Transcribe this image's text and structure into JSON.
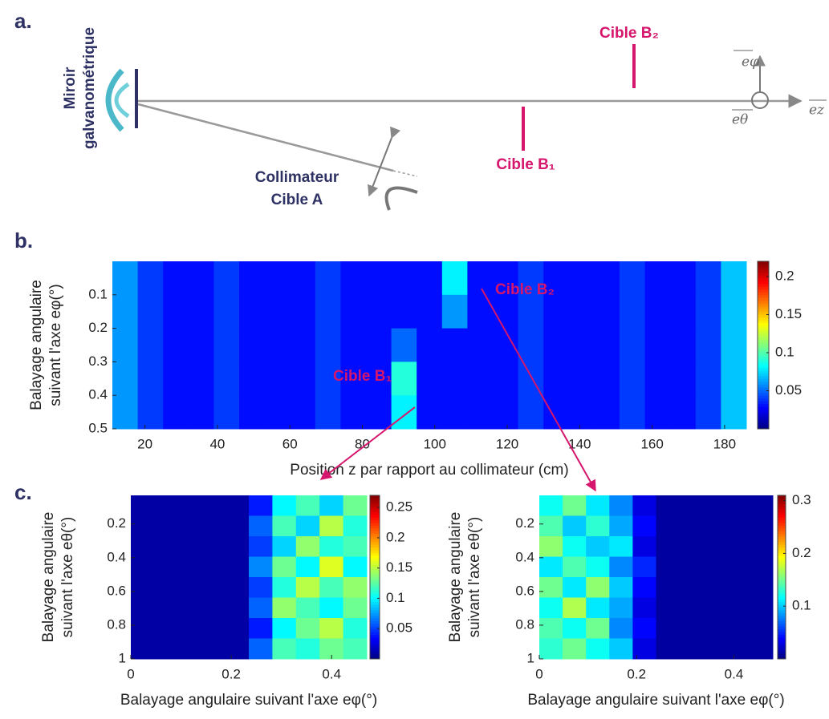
{
  "panels": [
    "a.",
    "b.",
    "c."
  ],
  "diagram": {
    "mirror": [
      "Miroir",
      "galvanométrique"
    ],
    "collimator": [
      "Collimateur",
      "Cible A"
    ],
    "target_b1": "Cible B₁",
    "target_b2": "Cible B₂",
    "e_phi": "eφ",
    "e_theta": "eθ",
    "e_z": "ez"
  },
  "chart_data": [
    {
      "type": "heatmap",
      "xlabel": "Position z par rapport au collimateur (cm)",
      "ylabel": [
        "Balayage angulaire",
        "suivant l'axe eφ(°)"
      ],
      "xlim": [
        11,
        186
      ],
      "xticks": [
        20,
        40,
        60,
        80,
        100,
        120,
        140,
        160,
        180
      ],
      "ylim": [
        0,
        0.5
      ],
      "yticks": [
        0.1,
        0.2,
        0.3,
        0.4,
        0.5
      ],
      "yreverse": true,
      "clim": [
        0,
        0.22
      ],
      "cticks": [
        0.05,
        0.1,
        0.15,
        0.2
      ],
      "annotations": [
        "Cible B₁",
        "Cible B₂"
      ],
      "z": [
        [
          0.06,
          0.04,
          0.03,
          0.03,
          0.04,
          0.03,
          0.03,
          0.03,
          0.04,
          0.03,
          0.03,
          0.03,
          0.03,
          0.08,
          0.03,
          0.03,
          0.04,
          0.03,
          0.03,
          0.03,
          0.04,
          0.03,
          0.03,
          0.04,
          0.07
        ],
        [
          0.06,
          0.04,
          0.03,
          0.03,
          0.04,
          0.03,
          0.03,
          0.03,
          0.04,
          0.03,
          0.03,
          0.03,
          0.03,
          0.06,
          0.03,
          0.03,
          0.04,
          0.03,
          0.03,
          0.03,
          0.04,
          0.03,
          0.03,
          0.04,
          0.07
        ],
        [
          0.06,
          0.04,
          0.03,
          0.03,
          0.04,
          0.03,
          0.03,
          0.03,
          0.04,
          0.03,
          0.03,
          0.05,
          0.03,
          0.03,
          0.03,
          0.03,
          0.04,
          0.03,
          0.03,
          0.03,
          0.04,
          0.03,
          0.03,
          0.04,
          0.07
        ],
        [
          0.06,
          0.04,
          0.03,
          0.03,
          0.04,
          0.03,
          0.03,
          0.03,
          0.04,
          0.03,
          0.03,
          0.09,
          0.03,
          0.03,
          0.03,
          0.03,
          0.04,
          0.03,
          0.03,
          0.03,
          0.04,
          0.03,
          0.03,
          0.04,
          0.07
        ],
        [
          0.06,
          0.04,
          0.03,
          0.03,
          0.04,
          0.03,
          0.03,
          0.03,
          0.04,
          0.03,
          0.03,
          0.08,
          0.03,
          0.03,
          0.03,
          0.03,
          0.04,
          0.03,
          0.03,
          0.03,
          0.04,
          0.03,
          0.03,
          0.04,
          0.07
        ]
      ]
    },
    {
      "type": "heatmap",
      "xlabel": "Balayage angulaire suivant l'axe eφ(°)",
      "ylabel": [
        "Balayage angulaire",
        "suivant l'axe eθ(°)"
      ],
      "xlim": [
        0,
        0.47
      ],
      "xticks": [
        0,
        0.2,
        0.4
      ],
      "ylim": [
        0.03,
        1
      ],
      "yticks": [
        0.2,
        0.4,
        0.6,
        0.8,
        1
      ],
      "yreverse": true,
      "clim": [
        0,
        0.27
      ],
      "cticks": [
        0.05,
        0.1,
        0.15,
        0.2,
        0.25
      ],
      "z": [
        [
          0.01,
          0.01,
          0.01,
          0.01,
          0.01,
          0.04,
          0.1,
          0.12,
          0.09,
          0.13
        ],
        [
          0.01,
          0.01,
          0.01,
          0.01,
          0.01,
          0.06,
          0.12,
          0.09,
          0.15,
          0.11
        ],
        [
          0.01,
          0.01,
          0.01,
          0.01,
          0.01,
          0.05,
          0.09,
          0.14,
          0.11,
          0.12
        ],
        [
          0.01,
          0.01,
          0.01,
          0.01,
          0.01,
          0.07,
          0.13,
          0.1,
          0.16,
          0.1
        ],
        [
          0.01,
          0.01,
          0.01,
          0.01,
          0.01,
          0.05,
          0.11,
          0.15,
          0.12,
          0.14
        ],
        [
          0.01,
          0.01,
          0.01,
          0.01,
          0.01,
          0.06,
          0.14,
          0.12,
          0.1,
          0.13
        ],
        [
          0.01,
          0.01,
          0.01,
          0.01,
          0.01,
          0.04,
          0.1,
          0.13,
          0.15,
          0.11
        ],
        [
          0.01,
          0.01,
          0.01,
          0.01,
          0.01,
          0.06,
          0.12,
          0.11,
          0.13,
          0.12
        ]
      ]
    },
    {
      "type": "heatmap",
      "xlabel": "Balayage angulaire suivant l'axe eφ(°)",
      "ylabel": [
        "Balayage angulaire",
        "suivant l'axe eθ(°)"
      ],
      "xlim": [
        0,
        0.48
      ],
      "xticks": [
        0,
        0.2,
        0.4
      ],
      "ylim": [
        0.03,
        1
      ],
      "yticks": [
        0.2,
        0.4,
        0.6,
        0.8,
        1
      ],
      "yreverse": true,
      "clim": [
        0,
        0.31
      ],
      "cticks": [
        0.1,
        0.2,
        0.3
      ],
      "z": [
        [
          0.12,
          0.15,
          0.11,
          0.08,
          0.03,
          0.01,
          0.01,
          0.01,
          0.01,
          0.01
        ],
        [
          0.14,
          0.1,
          0.13,
          0.09,
          0.04,
          0.01,
          0.01,
          0.01,
          0.01,
          0.01
        ],
        [
          0.16,
          0.12,
          0.1,
          0.11,
          0.03,
          0.01,
          0.01,
          0.01,
          0.01,
          0.01
        ],
        [
          0.11,
          0.14,
          0.12,
          0.08,
          0.05,
          0.01,
          0.01,
          0.01,
          0.01,
          0.01
        ],
        [
          0.15,
          0.11,
          0.16,
          0.1,
          0.04,
          0.01,
          0.01,
          0.01,
          0.01,
          0.01
        ],
        [
          0.12,
          0.17,
          0.11,
          0.09,
          0.03,
          0.01,
          0.01,
          0.01,
          0.01,
          0.01
        ],
        [
          0.14,
          0.12,
          0.15,
          0.08,
          0.04,
          0.01,
          0.01,
          0.01,
          0.01,
          0.01
        ],
        [
          0.13,
          0.15,
          0.12,
          0.1,
          0.03,
          0.01,
          0.01,
          0.01,
          0.01,
          0.01
        ]
      ]
    }
  ]
}
